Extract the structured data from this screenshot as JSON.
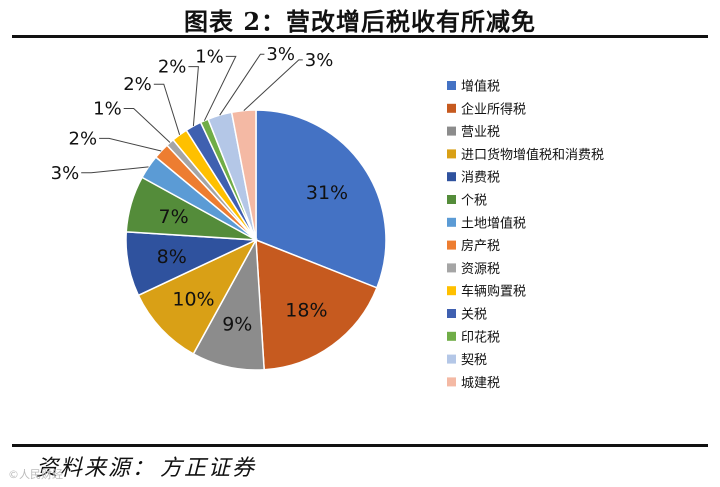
{
  "header": {
    "title": "图表 2：营改增后税收有所减免"
  },
  "footer": {
    "source_label": "资料来源：",
    "source_value": "方正证券",
    "watermark": "©人民财经"
  },
  "chart_data": {
    "type": "pie",
    "title": "图表 2：营改增后税收有所减免",
    "legend_position": "right",
    "categories": [
      "增值税",
      "企业所得税",
      "营业税",
      "进口货物增值税和消费税",
      "消费税",
      "个税",
      "土地增值税",
      "房产税",
      "资源税",
      "车辆购置税",
      "关税",
      "印花税",
      "契税",
      "城建税"
    ],
    "values": [
      31,
      18,
      9,
      10,
      8,
      7,
      3,
      2,
      1,
      2,
      2,
      1,
      3,
      3
    ],
    "labels": [
      "31%",
      "18%",
      "9%",
      "10%",
      "8%",
      "7%",
      "3%",
      "2%",
      "1%",
      "2%",
      "2%",
      "1%",
      "3%",
      "3%"
    ],
    "colors": [
      "#4472C4",
      "#C65A1F",
      "#8C8C8C",
      "#D9A016",
      "#2F529E",
      "#548C3A",
      "#5B9BD5",
      "#ED7D31",
      "#A5A5A5",
      "#FFC000",
      "#3F60B0",
      "#70AD47",
      "#B4C7E7",
      "#F4B9A4"
    ]
  }
}
